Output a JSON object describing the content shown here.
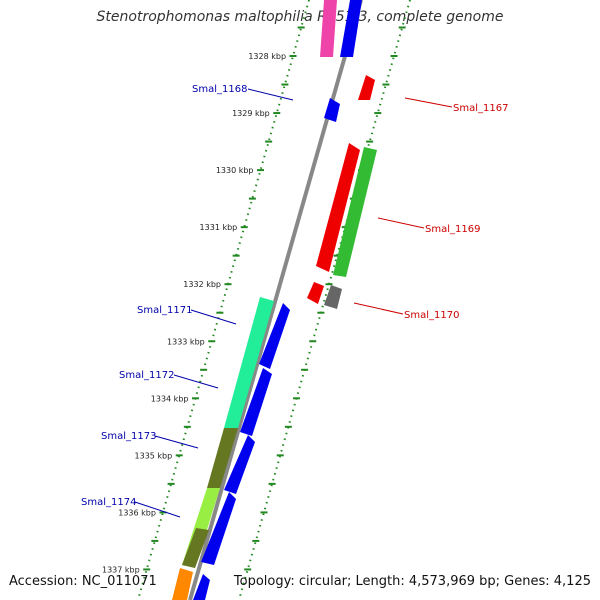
{
  "title": "Stenotrophomonas maltophilia R551-3, complete genome",
  "footer": {
    "accession": "Accession: NC_011071",
    "topology": "Topology: circular; Length: 4,573,969 bp; Genes: 4,125"
  },
  "scale": [
    {
      "label": "1328 kbp"
    },
    {
      "label": "1329 kbp"
    },
    {
      "label": "1330 kbp"
    },
    {
      "label": "1331 kbp"
    },
    {
      "label": "1332 kbp"
    },
    {
      "label": "1333 kbp"
    },
    {
      "label": "1334 kbp"
    },
    {
      "label": "1335 kbp"
    },
    {
      "label": "1336 kbp"
    },
    {
      "label": "1337 kbp"
    }
  ],
  "gene_labels": {
    "forward": [
      "Smal_1167",
      "Smal_1169",
      "Smal_1170"
    ],
    "reverse": [
      "Smal_1168",
      "Smal_1171",
      "Smal_1172",
      "Smal_1173",
      "Smal_1174"
    ]
  },
  "colors": {
    "forward_label": "#cc0000",
    "reverse_label": "#0000aa",
    "backbone": "#888888",
    "tick": "#228822",
    "gene_blue": "#0000ee",
    "gene_red": "#ee0000",
    "gene_green": "#33bb33",
    "gene_gray": "#666666",
    "gene_teal": "#22ee99",
    "gene_olive": "#667722",
    "gene_lime": "#99ee44",
    "gene_orange": "#ff8800",
    "gene_pink": "#ee44aa"
  }
}
